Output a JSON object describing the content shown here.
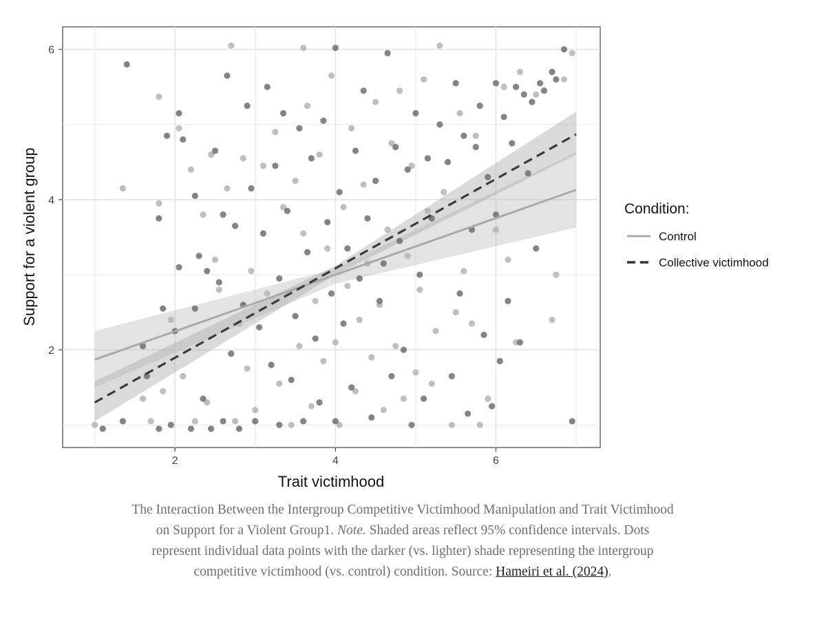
{
  "chart_data": {
    "type": "scatter",
    "xlabel": "Trait victimhood",
    "ylabel": "Support for a violent group",
    "xlim": [
      0.6,
      7.3
    ],
    "ylim": [
      0.7,
      6.3
    ],
    "x_ticks": [
      2,
      4,
      6
    ],
    "y_ticks": [
      2,
      4,
      6
    ],
    "grid": true,
    "legend": {
      "title": "Condition:",
      "placement": "right",
      "entries": [
        "Control",
        "Collective victimhood"
      ]
    },
    "series": [
      {
        "name": "Control",
        "color": "#b4b4b4",
        "line_style": "solid",
        "fit_line": {
          "x": [
            1.0,
            7.0
          ],
          "y": [
            1.87,
            4.13
          ]
        },
        "confidence_band": {
          "x": [
            1.0,
            4.0,
            7.0
          ],
          "lower": [
            1.5,
            2.88,
            3.63
          ],
          "upper": [
            2.25,
            3.08,
            4.63
          ]
        },
        "points": [
          [
            1.0,
            1.0
          ],
          [
            1.35,
            4.15
          ],
          [
            1.6,
            1.35
          ],
          [
            1.7,
            1.05
          ],
          [
            1.8,
            3.95
          ],
          [
            1.8,
            5.37
          ],
          [
            1.85,
            1.45
          ],
          [
            1.95,
            2.4
          ],
          [
            2.05,
            4.95
          ],
          [
            2.1,
            1.65
          ],
          [
            2.2,
            4.4
          ],
          [
            2.25,
            1.05
          ],
          [
            2.35,
            3.8
          ],
          [
            2.4,
            1.3
          ],
          [
            2.45,
            4.6
          ],
          [
            2.5,
            3.2
          ],
          [
            2.55,
            2.8
          ],
          [
            2.65,
            4.15
          ],
          [
            2.7,
            6.05
          ],
          [
            2.75,
            1.05
          ],
          [
            2.8,
            2.35
          ],
          [
            2.85,
            4.55
          ],
          [
            2.9,
            1.75
          ],
          [
            2.95,
            3.05
          ],
          [
            3.0,
            1.2
          ],
          [
            3.1,
            4.45
          ],
          [
            3.15,
            2.75
          ],
          [
            3.25,
            4.9
          ],
          [
            3.3,
            1.55
          ],
          [
            3.35,
            3.9
          ],
          [
            3.45,
            1.0
          ],
          [
            3.5,
            4.25
          ],
          [
            3.55,
            2.05
          ],
          [
            3.6,
            6.02
          ],
          [
            3.6,
            3.55
          ],
          [
            3.65,
            5.25
          ],
          [
            3.7,
            1.25
          ],
          [
            3.75,
            2.65
          ],
          [
            3.8,
            4.6
          ],
          [
            3.85,
            1.85
          ],
          [
            3.9,
            3.35
          ],
          [
            3.95,
            5.65
          ],
          [
            4.0,
            2.1
          ],
          [
            4.05,
            1.0
          ],
          [
            4.1,
            3.9
          ],
          [
            4.15,
            2.85
          ],
          [
            4.2,
            4.95
          ],
          [
            4.25,
            1.45
          ],
          [
            4.3,
            2.4
          ],
          [
            4.35,
            4.2
          ],
          [
            4.4,
            3.15
          ],
          [
            4.45,
            1.9
          ],
          [
            4.5,
            5.3
          ],
          [
            4.55,
            2.6
          ],
          [
            4.6,
            1.2
          ],
          [
            4.65,
            3.6
          ],
          [
            4.7,
            4.75
          ],
          [
            4.75,
            2.05
          ],
          [
            4.8,
            5.45
          ],
          [
            4.85,
            1.35
          ],
          [
            4.9,
            3.25
          ],
          [
            4.95,
            4.45
          ],
          [
            5.0,
            1.7
          ],
          [
            5.05,
            2.8
          ],
          [
            5.1,
            5.6
          ],
          [
            5.15,
            3.85
          ],
          [
            5.2,
            1.55
          ],
          [
            5.25,
            2.25
          ],
          [
            5.3,
            6.05
          ],
          [
            5.35,
            4.1
          ],
          [
            5.45,
            1.0
          ],
          [
            5.5,
            2.5
          ],
          [
            5.55,
            5.15
          ],
          [
            5.6,
            3.05
          ],
          [
            5.7,
            2.35
          ],
          [
            5.75,
            4.85
          ],
          [
            5.8,
            1.0
          ],
          [
            5.9,
            1.35
          ],
          [
            6.0,
            3.6
          ],
          [
            6.1,
            5.5
          ],
          [
            6.15,
            3.2
          ],
          [
            6.25,
            2.1
          ],
          [
            6.3,
            5.7
          ],
          [
            6.5,
            5.4
          ],
          [
            6.7,
            2.4
          ],
          [
            6.75,
            3.0
          ],
          [
            6.85,
            5.6
          ],
          [
            6.95,
            5.95
          ]
        ]
      },
      {
        "name": "Collective victimhood",
        "color": "#6e6e6e",
        "line_style": "dashed",
        "fit_line": {
          "x": [
            1.0,
            7.0
          ],
          "y": [
            1.3,
            4.87
          ]
        },
        "confidence_band": {
          "x": [
            1.0,
            4.0,
            7.0
          ],
          "lower": [
            1.05,
            3.0,
            4.6
          ],
          "upper": [
            1.58,
            3.12,
            5.17
          ]
        },
        "points": [
          [
            1.1,
            0.95
          ],
          [
            1.35,
            1.05
          ],
          [
            1.4,
            5.8
          ],
          [
            1.6,
            2.05
          ],
          [
            1.65,
            1.65
          ],
          [
            1.8,
            0.95
          ],
          [
            1.8,
            3.75
          ],
          [
            1.85,
            2.55
          ],
          [
            1.9,
            4.85
          ],
          [
            1.95,
            1.0
          ],
          [
            2.0,
            2.25
          ],
          [
            2.05,
            3.1
          ],
          [
            2.05,
            5.15
          ],
          [
            2.1,
            4.8
          ],
          [
            2.2,
            0.95
          ],
          [
            2.25,
            4.05
          ],
          [
            2.25,
            2.55
          ],
          [
            2.3,
            3.25
          ],
          [
            2.35,
            1.35
          ],
          [
            2.4,
            3.05
          ],
          [
            2.45,
            0.95
          ],
          [
            2.5,
            4.65
          ],
          [
            2.55,
            2.9
          ],
          [
            2.6,
            3.8
          ],
          [
            2.6,
            1.05
          ],
          [
            2.65,
            5.65
          ],
          [
            2.7,
            1.95
          ],
          [
            2.75,
            3.65
          ],
          [
            2.8,
            0.95
          ],
          [
            2.85,
            2.6
          ],
          [
            2.9,
            5.25
          ],
          [
            2.95,
            4.15
          ],
          [
            3.0,
            1.05
          ],
          [
            3.05,
            2.3
          ],
          [
            3.1,
            3.55
          ],
          [
            3.15,
            5.5
          ],
          [
            3.2,
            1.8
          ],
          [
            3.25,
            4.45
          ],
          [
            3.3,
            1.0
          ],
          [
            3.3,
            2.95
          ],
          [
            3.35,
            5.15
          ],
          [
            3.4,
            3.85
          ],
          [
            3.45,
            1.6
          ],
          [
            3.5,
            2.45
          ],
          [
            3.55,
            4.95
          ],
          [
            3.6,
            1.05
          ],
          [
            3.65,
            3.3
          ],
          [
            3.7,
            4.55
          ],
          [
            3.75,
            2.15
          ],
          [
            3.8,
            1.3
          ],
          [
            3.85,
            5.05
          ],
          [
            3.9,
            3.7
          ],
          [
            3.95,
            2.75
          ],
          [
            4.0,
            6.02
          ],
          [
            4.0,
            1.05
          ],
          [
            4.05,
            4.1
          ],
          [
            4.1,
            2.35
          ],
          [
            4.15,
            3.35
          ],
          [
            4.2,
            1.5
          ],
          [
            4.25,
            4.65
          ],
          [
            4.3,
            2.95
          ],
          [
            4.35,
            5.45
          ],
          [
            4.4,
            3.75
          ],
          [
            4.45,
            1.1
          ],
          [
            4.5,
            4.25
          ],
          [
            4.55,
            2.65
          ],
          [
            4.6,
            3.15
          ],
          [
            4.65,
            5.95
          ],
          [
            4.7,
            1.65
          ],
          [
            4.75,
            4.7
          ],
          [
            4.8,
            3.45
          ],
          [
            4.85,
            2.0
          ],
          [
            4.9,
            4.4
          ],
          [
            4.95,
            1.0
          ],
          [
            5.0,
            5.15
          ],
          [
            5.05,
            3.0
          ],
          [
            5.1,
            1.35
          ],
          [
            5.15,
            4.55
          ],
          [
            5.2,
            3.75
          ],
          [
            5.3,
            5.0
          ],
          [
            5.4,
            4.5
          ],
          [
            5.45,
            1.65
          ],
          [
            5.5,
            5.55
          ],
          [
            5.55,
            2.75
          ],
          [
            5.6,
            4.85
          ],
          [
            5.65,
            1.15
          ],
          [
            5.7,
            3.6
          ],
          [
            5.75,
            4.7
          ],
          [
            5.8,
            5.25
          ],
          [
            5.85,
            2.2
          ],
          [
            5.9,
            4.3
          ],
          [
            5.95,
            1.25
          ],
          [
            6.0,
            5.55
          ],
          [
            6.0,
            3.8
          ],
          [
            6.05,
            1.85
          ],
          [
            6.1,
            5.1
          ],
          [
            6.15,
            2.65
          ],
          [
            6.2,
            4.75
          ],
          [
            6.25,
            5.5
          ],
          [
            6.3,
            2.1
          ],
          [
            6.35,
            5.4
          ],
          [
            6.4,
            4.35
          ],
          [
            6.45,
            5.3
          ],
          [
            6.5,
            3.35
          ],
          [
            6.55,
            5.55
          ],
          [
            6.6,
            5.45
          ],
          [
            6.7,
            5.7
          ],
          [
            6.75,
            5.6
          ],
          [
            6.85,
            6.0
          ],
          [
            6.95,
            1.05
          ]
        ]
      }
    ]
  },
  "caption": {
    "text_1": "The Interaction Between the Intergroup Competitive Victimhood Manipulation and Trait Victimhood on Support for a Violent Group1. ",
    "note_label": "Note.",
    "text_2": " Shaded areas reflect 95% confidence intervals. Dots represent individual data points with the darker (vs. lighter) shade representing the intergroup competitive victimhood (vs. control) condition. Source: ",
    "link_text": "Hameiri et al. (2024)",
    "text_3": "."
  }
}
